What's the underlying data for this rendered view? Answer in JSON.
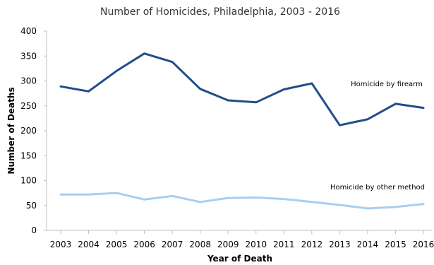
{
  "chart_data": {
    "type": "line",
    "title": "Number of Homicides, Philadelphia, 2003 - 2016",
    "xlabel": "Year of Death",
    "ylabel": "Number of Deaths",
    "categories": [
      "2003",
      "2004",
      "2005",
      "2006",
      "2007",
      "2008",
      "2009",
      "2010",
      "2011",
      "2012",
      "2013",
      "2014",
      "2015",
      "2016"
    ],
    "ylim": [
      0,
      400
    ],
    "yticks": [
      0,
      50,
      100,
      150,
      200,
      250,
      300,
      350,
      400
    ],
    "grid": false,
    "series": [
      {
        "name": "Homicide by firearm",
        "color": "#1f4e8c",
        "values": [
          289,
          279,
          320,
          355,
          338,
          284,
          261,
          257,
          283,
          295,
          211,
          223,
          254,
          246
        ]
      },
      {
        "name": "Homicide by other method",
        "color": "#a9cdf2",
        "values": [
          72,
          72,
          75,
          62,
          69,
          57,
          65,
          66,
          63,
          57,
          51,
          44,
          47,
          53
        ]
      }
    ]
  }
}
